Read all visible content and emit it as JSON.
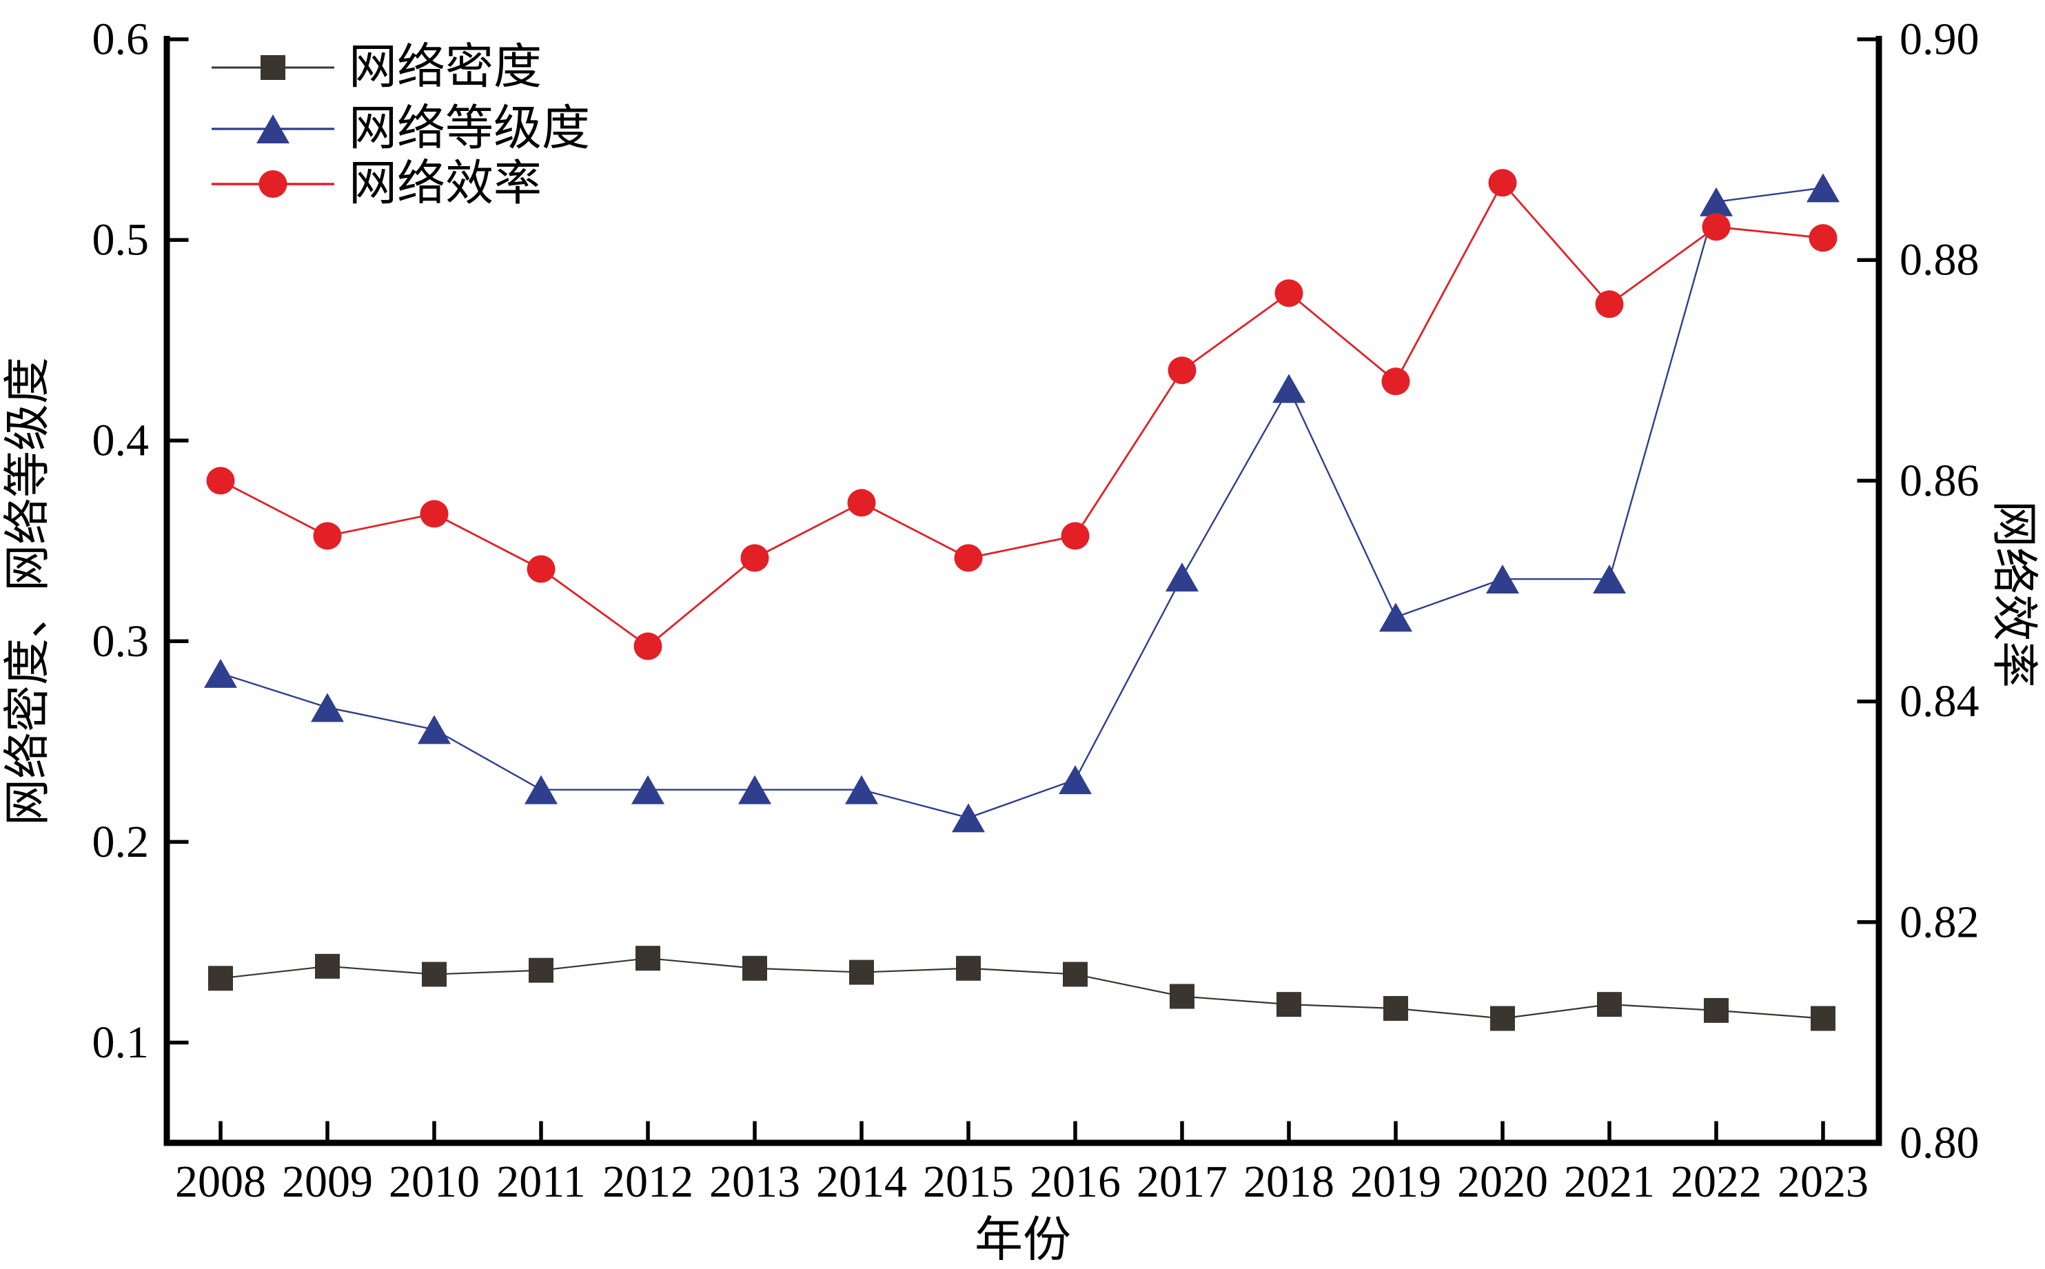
{
  "chart_data": {
    "type": "line",
    "title": "",
    "xlabel": "年份",
    "ylabel_left": "网络密度、网络等级度",
    "ylabel_right": "网络效率",
    "categories": [
      "2008",
      "2009",
      "2010",
      "2011",
      "2012",
      "2013",
      "2014",
      "2015",
      "2016",
      "2017",
      "2018",
      "2019",
      "2020",
      "2021",
      "2022",
      "2023"
    ],
    "ylim_left": [
      0.05,
      0.6
    ],
    "ylim_right": [
      0.8,
      0.9
    ],
    "yticks_left": {
      "values": [
        0.1,
        0.2,
        0.3,
        0.4,
        0.5,
        0.6
      ],
      "labels": [
        "0.1",
        "0.2",
        "0.3",
        "0.4",
        "0.5",
        "0.6"
      ]
    },
    "yticks_right": {
      "values": [
        0.8,
        0.82,
        0.84,
        0.86,
        0.88,
        0.9
      ],
      "labels": [
        "0.80",
        "0.82",
        "0.84",
        "0.86",
        "0.88",
        "0.90"
      ]
    },
    "grid": false,
    "legend_position": "top-left",
    "axis_color": "#000000",
    "series": [
      {
        "name": "网络密度",
        "axis": "left",
        "marker": "square",
        "color": "#3a352f",
        "values": [
          0.132,
          0.138,
          0.134,
          0.136,
          0.142,
          0.137,
          0.135,
          0.137,
          0.134,
          0.123,
          0.119,
          0.117,
          0.112,
          0.119,
          0.116,
          0.112
        ]
      },
      {
        "name": "网络等级度",
        "axis": "left",
        "marker": "triangle",
        "color": "#2f3e8d",
        "values": [
          0.284,
          0.267,
          0.256,
          0.226,
          0.226,
          0.226,
          0.226,
          0.212,
          0.231,
          0.332,
          0.426,
          0.312,
          0.331,
          0.331,
          0.519,
          0.526
        ]
      },
      {
        "name": "网络效率",
        "axis": "right",
        "marker": "circle",
        "color": "#e22026",
        "values": [
          0.86,
          0.855,
          0.857,
          0.852,
          0.845,
          0.853,
          0.858,
          0.853,
          0.855,
          0.87,
          0.877,
          0.869,
          0.887,
          0.876,
          0.883,
          0.882
        ]
      }
    ]
  }
}
